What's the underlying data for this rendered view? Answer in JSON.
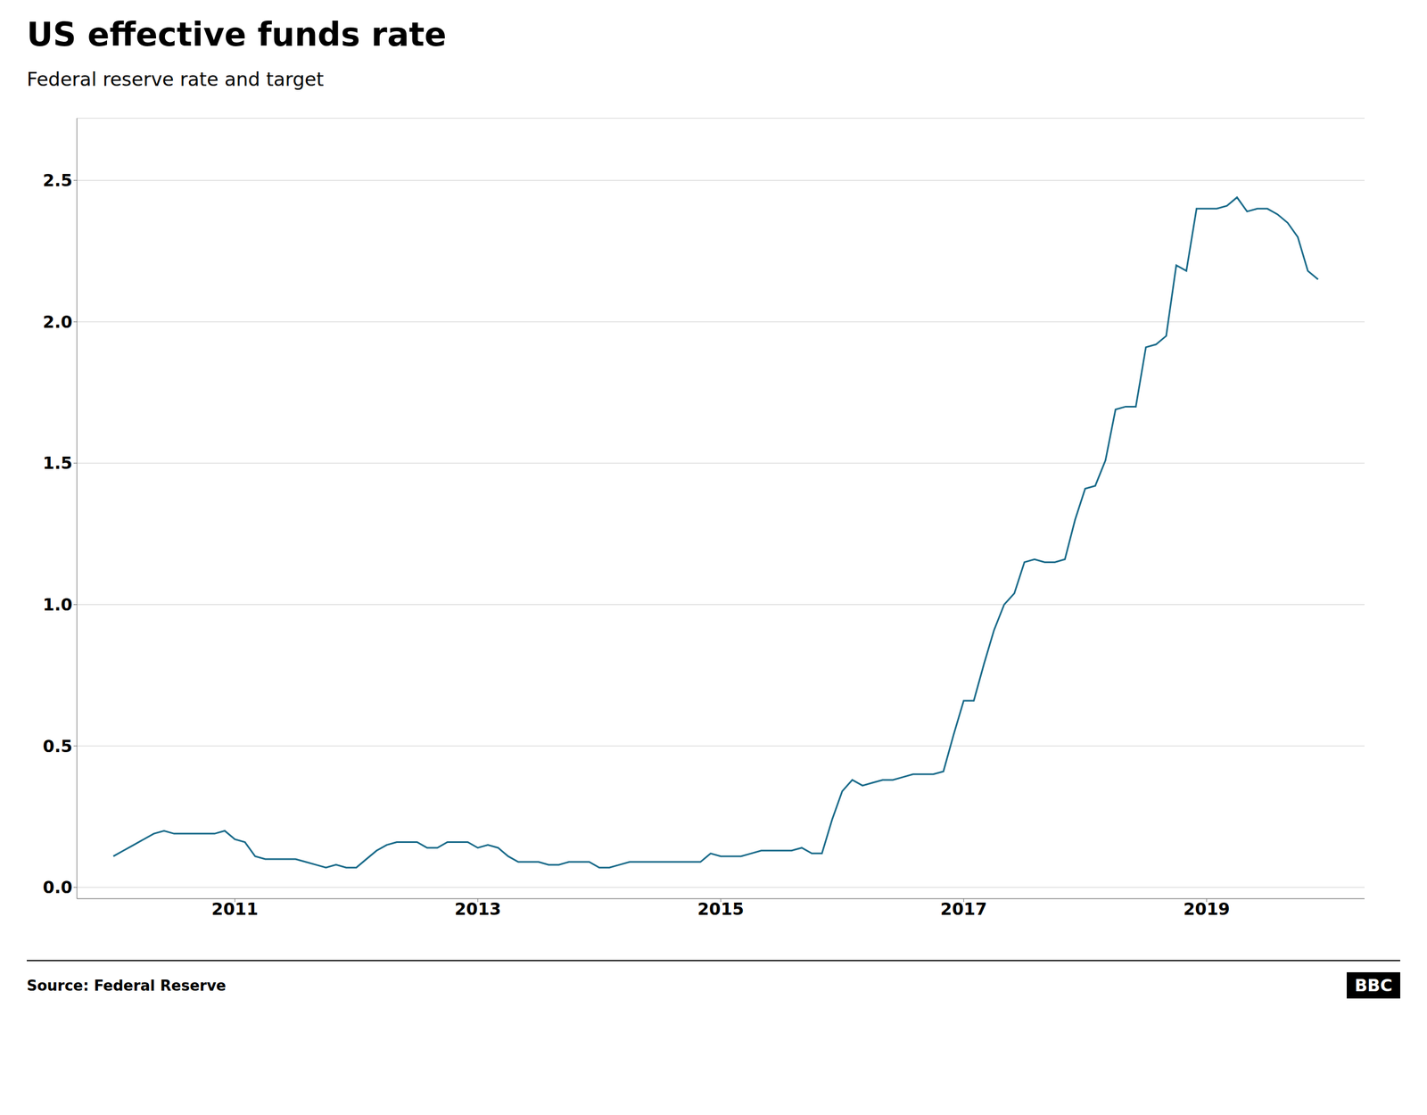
{
  "chart_data": {
    "type": "line",
    "title": "US effective funds rate",
    "subtitle": "Federal reserve rate and target",
    "annotations": [
      "Source: Federal Reserve",
      "BBC"
    ],
    "color": "#1a6b8a",
    "grid": true,
    "xlim": [
      2009.7,
      2020.3
    ],
    "xticks": [
      2011,
      2013,
      2015,
      2017,
      2019
    ],
    "ylim": [
      -0.04,
      2.72
    ],
    "yticks": [
      {
        "value": 0.0,
        "label": "0.0"
      },
      0.5,
      {
        "value": 1.0,
        "label": "1.0"
      },
      1.5,
      {
        "value": 2.0,
        "label": "2.0"
      },
      2.5
    ],
    "x": [
      2010.0,
      2010.083,
      2010.167,
      2010.25,
      2010.333,
      2010.417,
      2010.5,
      2010.583,
      2010.667,
      2010.75,
      2010.833,
      2010.917,
      2011.0,
      2011.083,
      2011.167,
      2011.25,
      2011.333,
      2011.417,
      2011.5,
      2011.583,
      2011.667,
      2011.75,
      2011.833,
      2011.917,
      2012.0,
      2012.083,
      2012.167,
      2012.25,
      2012.333,
      2012.417,
      2012.5,
      2012.583,
      2012.667,
      2012.75,
      2012.833,
      2012.917,
      2013.0,
      2013.083,
      2013.167,
      2013.25,
      2013.333,
      2013.417,
      2013.5,
      2013.583,
      2013.667,
      2013.75,
      2013.833,
      2013.917,
      2014.0,
      2014.083,
      2014.167,
      2014.25,
      2014.333,
      2014.417,
      2014.5,
      2014.583,
      2014.667,
      2014.75,
      2014.833,
      2014.917,
      2015.0,
      2015.083,
      2015.167,
      2015.25,
      2015.333,
      2015.417,
      2015.5,
      2015.583,
      2015.667,
      2015.75,
      2015.833,
      2015.917,
      2016.0,
      2016.083,
      2016.167,
      2016.25,
      2016.333,
      2016.417,
      2016.5,
      2016.583,
      2016.667,
      2016.75,
      2016.833,
      2016.917,
      2017.0,
      2017.083,
      2017.167,
      2017.25,
      2017.333,
      2017.417,
      2017.5,
      2017.583,
      2017.667,
      2017.75,
      2017.833,
      2017.917,
      2018.0,
      2018.083,
      2018.167,
      2018.25,
      2018.333,
      2018.417,
      2018.5,
      2018.583,
      2018.667,
      2018.75,
      2018.833,
      2018.917,
      2019.0,
      2019.083,
      2019.167,
      2019.25,
      2019.333,
      2019.417,
      2019.5,
      2019.583,
      2019.667,
      2019.75,
      2019.833,
      2019.917
    ],
    "values": [
      0.11,
      0.13,
      0.15,
      0.17,
      0.19,
      0.2,
      0.19,
      0.19,
      0.19,
      0.19,
      0.19,
      0.2,
      0.17,
      0.16,
      0.11,
      0.1,
      0.1,
      0.1,
      0.1,
      0.09,
      0.08,
      0.07,
      0.08,
      0.07,
      0.07,
      0.1,
      0.13,
      0.15,
      0.16,
      0.16,
      0.16,
      0.14,
      0.14,
      0.16,
      0.16,
      0.16,
      0.14,
      0.15,
      0.14,
      0.11,
      0.09,
      0.09,
      0.09,
      0.08,
      0.08,
      0.09,
      0.09,
      0.09,
      0.07,
      0.07,
      0.08,
      0.09,
      0.09,
      0.09,
      0.09,
      0.09,
      0.09,
      0.09,
      0.09,
      0.12,
      0.11,
      0.11,
      0.11,
      0.12,
      0.13,
      0.13,
      0.13,
      0.13,
      0.14,
      0.12,
      0.12,
      0.24,
      0.34,
      0.38,
      0.36,
      0.37,
      0.38,
      0.38,
      0.39,
      0.4,
      0.4,
      0.4,
      0.41,
      0.54,
      0.66,
      0.66,
      0.79,
      0.91,
      1.0,
      1.04,
      1.15,
      1.16,
      1.15,
      1.15,
      1.16,
      1.3,
      1.41,
      1.42,
      1.51,
      1.69,
      1.7,
      1.7,
      1.91,
      1.92,
      1.95,
      2.2,
      2.18,
      2.4,
      2.4,
      2.4,
      2.41,
      2.44,
      2.39,
      2.4,
      2.4,
      2.38,
      2.35,
      2.3,
      2.18,
      2.15
    ]
  }
}
